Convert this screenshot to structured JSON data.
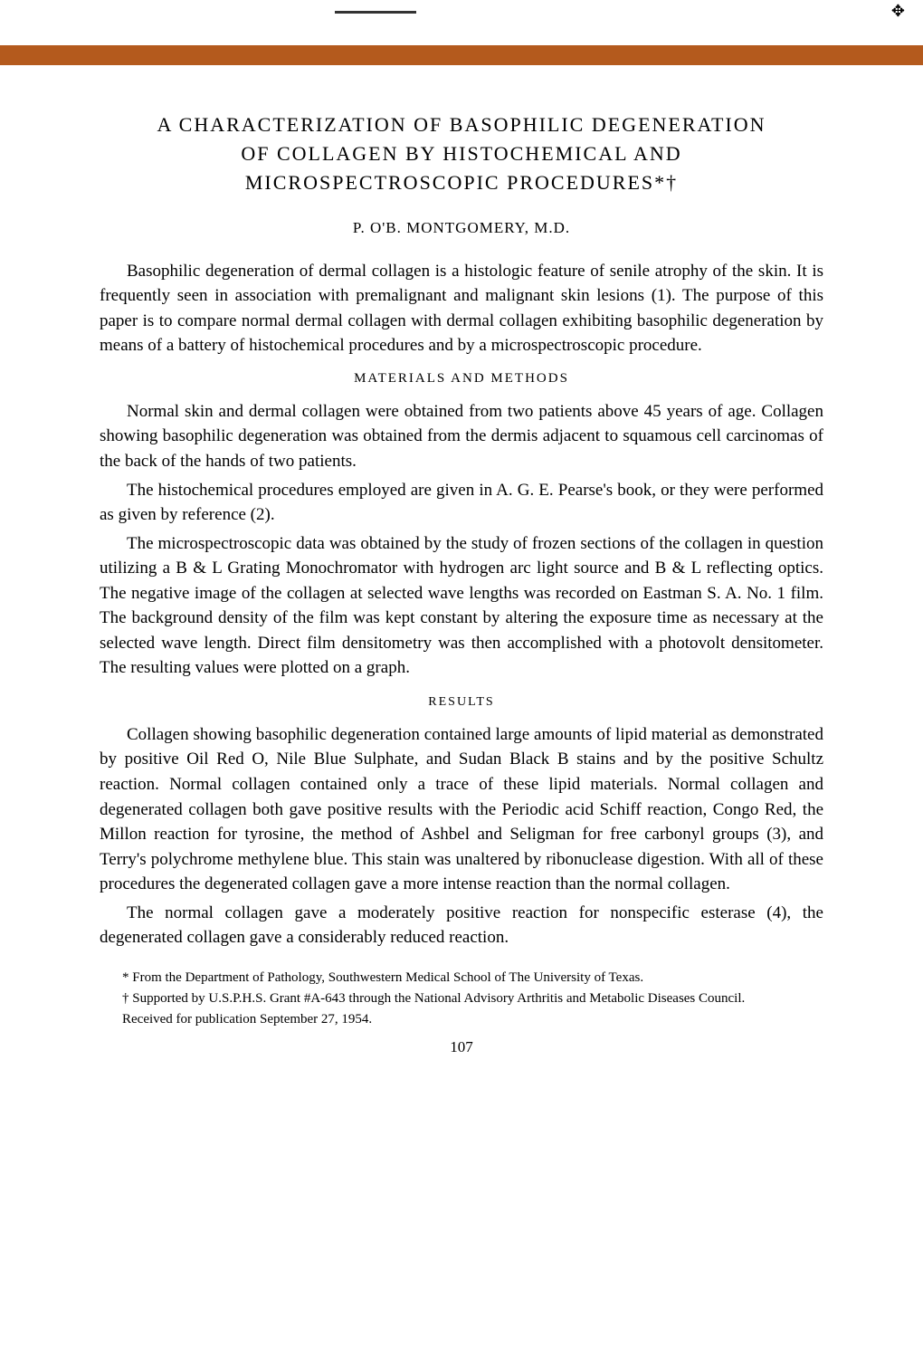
{
  "colors": {
    "header_bar": "#b45a1d",
    "background": "#ffffff",
    "text": "#000000",
    "top_line": "#333333"
  },
  "typography": {
    "body_font": "Times New Roman",
    "title_fontsize": 22,
    "author_fontsize": 17,
    "body_fontsize": 19,
    "section_heading_fontsize": 15,
    "footnote_fontsize": 15
  },
  "title": {
    "line1": "A CHARACTERIZATION OF BASOPHILIC DEGENERATION",
    "line2": "OF COLLAGEN BY HISTOCHEMICAL AND",
    "line3": "MICROSPECTROSCOPIC PROCEDURES*†"
  },
  "author": "P. O'B. MONTGOMERY, M.D.",
  "intro_paragraph": "Basophilic degeneration of dermal collagen is a histologic feature of senile atrophy of the skin. It is frequently seen in association with premalignant and malignant skin lesions (1). The purpose of this paper is to compare normal dermal collagen with dermal collagen exhibiting basophilic degeneration by means of a battery of histochemical procedures and by a microspectroscopic procedure.",
  "sections": {
    "materials": {
      "heading": "MATERIALS AND METHODS",
      "paragraphs": [
        "Normal skin and dermal collagen were obtained from two patients above 45 years of age. Collagen showing basophilic degeneration was obtained from the dermis adjacent to squamous cell carcinomas of the back of the hands of two patients.",
        "The histochemical procedures employed are given in A. G. E. Pearse's book, or they were performed as given by reference (2).",
        "The microspectroscopic data was obtained by the study of frozen sections of the collagen in question utilizing a B & L Grating Monochromator with hydrogen arc light source and B & L reflecting optics. The negative image of the collagen at selected wave lengths was recorded on Eastman S. A. No. 1 film. The background density of the film was kept constant by altering the exposure time as necessary at the selected wave length. Direct film densitometry was then accomplished with a photovolt densitometer. The resulting values were plotted on a graph."
      ]
    },
    "results": {
      "heading": "RESULTS",
      "paragraphs": [
        "Collagen showing basophilic degeneration contained large amounts of lipid material as demonstrated by positive Oil Red O, Nile Blue Sulphate, and Sudan Black B stains and by the positive Schultz reaction. Normal collagen contained only a trace of these lipid materials. Normal collagen and degenerated collagen both gave positive results with the Periodic acid Schiff reaction, Congo Red, the Millon reaction for tyrosine, the method of Ashbel and Seligman for free carbonyl groups (3), and Terry's polychrome methylene blue. This stain was unaltered by ribonuclease digestion. With all of these procedures the degenerated collagen gave a more intense reaction than the normal collagen.",
        "The normal collagen gave a moderately positive reaction for nonspecific esterase (4), the degenerated collagen gave a considerably reduced reaction."
      ]
    }
  },
  "footnotes": [
    "* From the Department of Pathology, Southwestern Medical School of The University of Texas.",
    "† Supported by U.S.P.H.S. Grant #A-643 through the National Advisory Arthritis and Metabolic Diseases Council.",
    "Received for publication September 27, 1954."
  ],
  "page_number": "107",
  "top_icon_glyph": "✥"
}
